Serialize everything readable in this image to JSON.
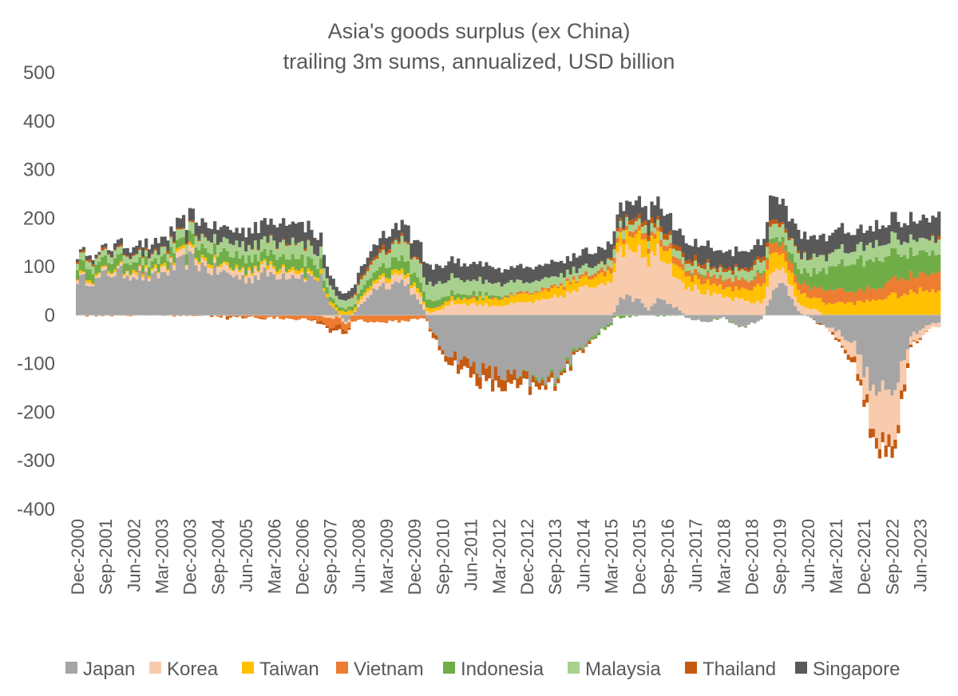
{
  "chart_data": {
    "type": "bar",
    "stacked": true,
    "title": "Asia's goods surplus (ex China)",
    "subtitle": "trailing 3m sums, annualized, USD billion",
    "xlabel": "",
    "ylabel": "",
    "ylim": [
      -400,
      500
    ],
    "yticks": [
      500,
      400,
      300,
      200,
      100,
      0,
      -100,
      -200,
      -300,
      -400
    ],
    "grid": false,
    "legend_position": "bottom",
    "x_start": "Dec-2000",
    "x_end": "Dec-2023",
    "x_ticks": [
      "Dec-2000",
      "Sep-2001",
      "Jun-2002",
      "Mar-2003",
      "Dec-2003",
      "Sep-2004",
      "Jun-2005",
      "Mar-2006",
      "Dec-2006",
      "Sep-2007",
      "Jun-2008",
      "Mar-2009",
      "Dec-2009",
      "Sep-2010",
      "Jun-2011",
      "Mar-2012",
      "Dec-2012",
      "Sep-2013",
      "Jun-2014",
      "Mar-2015",
      "Dec-2015",
      "Sep-2016",
      "Jun-2017",
      "Mar-2018",
      "Dec-2018",
      "Sep-2019",
      "Jun-2020",
      "Mar-2021",
      "Dec-2021",
      "Sep-2022",
      "Jun-2023"
    ],
    "series": [
      {
        "name": "Japan",
        "color": "#A5A5A5",
        "anchors": [
          [
            0,
            75
          ],
          [
            6,
            70
          ],
          [
            9,
            85
          ],
          [
            12,
            88
          ],
          [
            18,
            85
          ],
          [
            24,
            75
          ],
          [
            33,
            105
          ],
          [
            36,
            115
          ],
          [
            42,
            95
          ],
          [
            48,
            85
          ],
          [
            54,
            75
          ],
          [
            60,
            85
          ],
          [
            69,
            85
          ],
          [
            78,
            75
          ],
          [
            81,
            20
          ],
          [
            86,
            -15
          ],
          [
            90,
            15
          ],
          [
            96,
            60
          ],
          [
            105,
            70
          ],
          [
            111,
            10
          ],
          [
            114,
            -40
          ],
          [
            117,
            -70
          ],
          [
            123,
            -90
          ],
          [
            132,
            -120
          ],
          [
            141,
            -130
          ],
          [
            150,
            -140
          ],
          [
            156,
            -100
          ],
          [
            162,
            -60
          ],
          [
            165,
            -40
          ],
          [
            171,
            -15
          ],
          [
            174,
            40
          ],
          [
            180,
            30
          ],
          [
            183,
            10
          ],
          [
            186,
            35
          ],
          [
            189,
            25
          ],
          [
            192,
            15
          ],
          [
            195,
            -5
          ],
          [
            201,
            -15
          ],
          [
            207,
            -5
          ],
          [
            213,
            -25
          ],
          [
            219,
            -10
          ],
          [
            222,
            30
          ],
          [
            225,
            80
          ],
          [
            228,
            40
          ],
          [
            231,
            10
          ],
          [
            237,
            -15
          ],
          [
            243,
            -30
          ],
          [
            249,
            -60
          ],
          [
            252,
            -110
          ],
          [
            255,
            -160
          ],
          [
            261,
            -160
          ],
          [
            264,
            -100
          ],
          [
            267,
            -40
          ],
          [
            273,
            -20
          ],
          [
            276,
            -15
          ]
        ]
      },
      {
        "name": "Korea",
        "color": "#F8CBAD",
        "anchors": [
          [
            0,
            5
          ],
          [
            30,
            10
          ],
          [
            60,
            15
          ],
          [
            70,
            10
          ],
          [
            80,
            -5
          ],
          [
            86,
            -5
          ],
          [
            92,
            10
          ],
          [
            100,
            15
          ],
          [
            110,
            15
          ],
          [
            114,
            5
          ],
          [
            120,
            25
          ],
          [
            135,
            20
          ],
          [
            150,
            30
          ],
          [
            165,
            60
          ],
          [
            171,
            80
          ],
          [
            174,
            100
          ],
          [
            180,
            110
          ],
          [
            186,
            100
          ],
          [
            192,
            70
          ],
          [
            198,
            55
          ],
          [
            204,
            40
          ],
          [
            213,
            30
          ],
          [
            219,
            25
          ],
          [
            222,
            50
          ],
          [
            225,
            30
          ],
          [
            231,
            20
          ],
          [
            237,
            10
          ],
          [
            243,
            -15
          ],
          [
            249,
            -30
          ],
          [
            252,
            -50
          ],
          [
            255,
            -100
          ],
          [
            261,
            -110
          ],
          [
            264,
            -60
          ],
          [
            267,
            -20
          ],
          [
            273,
            -10
          ],
          [
            276,
            -10
          ]
        ]
      },
      {
        "name": "Taiwan",
        "color": "#FFC000",
        "anchors": [
          [
            0,
            3
          ],
          [
            60,
            5
          ],
          [
            90,
            8
          ],
          [
            105,
            10
          ],
          [
            114,
            8
          ],
          [
            135,
            15
          ],
          [
            150,
            18
          ],
          [
            165,
            20
          ],
          [
            171,
            20
          ],
          [
            180,
            35
          ],
          [
            192,
            25
          ],
          [
            201,
            20
          ],
          [
            213,
            20
          ],
          [
            222,
            40
          ],
          [
            225,
            30
          ],
          [
            231,
            25
          ],
          [
            237,
            25
          ],
          [
            249,
            25
          ],
          [
            255,
            30
          ],
          [
            261,
            40
          ],
          [
            267,
            45
          ],
          [
            273,
            55
          ],
          [
            276,
            55
          ]
        ]
      },
      {
        "name": "Vietnam",
        "color": "#ED7D31",
        "anchors": [
          [
            0,
            0
          ],
          [
            44,
            0
          ],
          [
            48,
            -3
          ],
          [
            60,
            -5
          ],
          [
            72,
            -8
          ],
          [
            78,
            -12
          ],
          [
            81,
            -20
          ],
          [
            84,
            -15
          ],
          [
            90,
            -10
          ],
          [
            96,
            -15
          ],
          [
            105,
            -12
          ],
          [
            111,
            -5
          ],
          [
            114,
            0
          ],
          [
            135,
            2
          ],
          [
            150,
            5
          ],
          [
            165,
            8
          ],
          [
            180,
            10
          ],
          [
            192,
            12
          ],
          [
            201,
            15
          ],
          [
            213,
            18
          ],
          [
            222,
            20
          ],
          [
            231,
            20
          ],
          [
            243,
            25
          ],
          [
            255,
            25
          ],
          [
            267,
            35
          ],
          [
            276,
            40
          ]
        ]
      },
      {
        "name": "Indonesia",
        "color": "#70AD47",
        "anchors": [
          [
            0,
            20
          ],
          [
            12,
            20
          ],
          [
            24,
            15
          ],
          [
            36,
            20
          ],
          [
            48,
            25
          ],
          [
            60,
            20
          ],
          [
            72,
            25
          ],
          [
            78,
            20
          ],
          [
            84,
            5
          ],
          [
            90,
            10
          ],
          [
            96,
            20
          ],
          [
            105,
            25
          ],
          [
            114,
            15
          ],
          [
            120,
            10
          ],
          [
            135,
            5
          ],
          [
            150,
            -5
          ],
          [
            162,
            -5
          ],
          [
            171,
            -5
          ],
          [
            180,
            -2
          ],
          [
            195,
            2
          ],
          [
            210,
            0
          ],
          [
            219,
            5
          ],
          [
            225,
            10
          ],
          [
            231,
            25
          ],
          [
            237,
            35
          ],
          [
            243,
            50
          ],
          [
            249,
            60
          ],
          [
            255,
            60
          ],
          [
            261,
            55
          ],
          [
            267,
            45
          ],
          [
            276,
            40
          ]
        ]
      },
      {
        "name": "Malaysia",
        "color": "#A9D18E",
        "anchors": [
          [
            0,
            15
          ],
          [
            12,
            15
          ],
          [
            24,
            15
          ],
          [
            36,
            20
          ],
          [
            48,
            25
          ],
          [
            60,
            25
          ],
          [
            72,
            30
          ],
          [
            78,
            25
          ],
          [
            84,
            15
          ],
          [
            90,
            20
          ],
          [
            96,
            25
          ],
          [
            105,
            35
          ],
          [
            114,
            35
          ],
          [
            120,
            30
          ],
          [
            135,
            25
          ],
          [
            150,
            20
          ],
          [
            165,
            15
          ],
          [
            180,
            15
          ],
          [
            195,
            15
          ],
          [
            210,
            15
          ],
          [
            222,
            25
          ],
          [
            231,
            30
          ],
          [
            243,
            30
          ],
          [
            255,
            30
          ],
          [
            267,
            30
          ],
          [
            276,
            30
          ]
        ]
      },
      {
        "name": "Thailand",
        "color": "#C55A11",
        "anchors": [
          [
            0,
            3
          ],
          [
            36,
            3
          ],
          [
            48,
            -3
          ],
          [
            60,
            0
          ],
          [
            72,
            3
          ],
          [
            78,
            -5
          ],
          [
            84,
            -10
          ],
          [
            90,
            5
          ],
          [
            96,
            8
          ],
          [
            105,
            5
          ],
          [
            111,
            0
          ],
          [
            114,
            -8
          ],
          [
            120,
            -15
          ],
          [
            126,
            -25
          ],
          [
            132,
            -28
          ],
          [
            141,
            -22
          ],
          [
            150,
            -10
          ],
          [
            162,
            -5
          ],
          [
            171,
            5
          ],
          [
            180,
            10
          ],
          [
            192,
            10
          ],
          [
            201,
            8
          ],
          [
            213,
            5
          ],
          [
            222,
            10
          ],
          [
            228,
            5
          ],
          [
            237,
            0
          ],
          [
            249,
            -10
          ],
          [
            255,
            -20
          ],
          [
            261,
            -25
          ],
          [
            267,
            -5
          ],
          [
            276,
            5
          ]
        ]
      },
      {
        "name": "Singapore",
        "color": "#595959",
        "anchors": [
          [
            0,
            5
          ],
          [
            12,
            10
          ],
          [
            24,
            20
          ],
          [
            36,
            25
          ],
          [
            48,
            30
          ],
          [
            60,
            35
          ],
          [
            72,
            40
          ],
          [
            78,
            30
          ],
          [
            84,
            15
          ],
          [
            90,
            20
          ],
          [
            96,
            25
          ],
          [
            105,
            30
          ],
          [
            114,
            40
          ],
          [
            120,
            35
          ],
          [
            135,
            30
          ],
          [
            150,
            30
          ],
          [
            165,
            30
          ],
          [
            180,
            35
          ],
          [
            195,
            35
          ],
          [
            210,
            35
          ],
          [
            219,
            30
          ],
          [
            222,
            45
          ],
          [
            231,
            40
          ],
          [
            243,
            40
          ],
          [
            255,
            35
          ],
          [
            267,
            40
          ],
          [
            276,
            45
          ]
        ]
      }
    ]
  }
}
